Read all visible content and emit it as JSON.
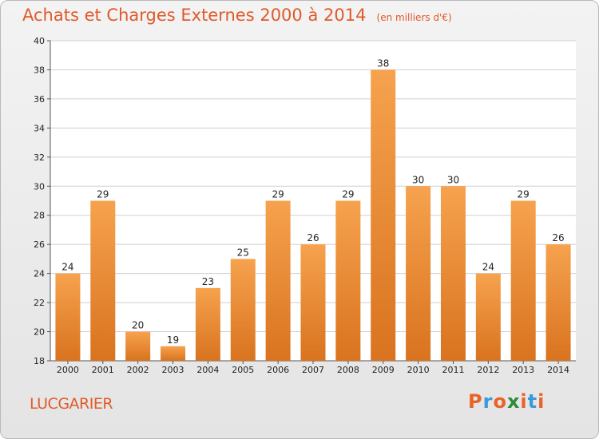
{
  "header": {
    "title": "Achats et Charges Externes 2000 à 2014",
    "subtitle": "(en milliers d'€)"
  },
  "footer": {
    "commune": "LUCGARIER",
    "brand": "Proxiti",
    "brand_colors": [
      "#e8632a",
      "#3a9ad9",
      "#e8632a",
      "#2e8b3a",
      "#e8632a",
      "#3a9ad9",
      "#e8632a"
    ]
  },
  "colors": {
    "bar_top": "#f6a24e",
    "bar_bottom": "#d9731f",
    "title": "#e05a2a",
    "grid": "#cfcfcf"
  },
  "chart_data": {
    "type": "bar",
    "title": "Achats et Charges Externes 2000 à 2014",
    "subtitle": "(en milliers d'€)",
    "categories": [
      "2000",
      "2001",
      "2002",
      "2003",
      "2004",
      "2005",
      "2006",
      "2007",
      "2008",
      "2009",
      "2010",
      "2011",
      "2012",
      "2013",
      "2014"
    ],
    "values": [
      24,
      29,
      20,
      19,
      23,
      25,
      29,
      26,
      29,
      38,
      30,
      30,
      24,
      29,
      26
    ],
    "ylim": [
      18,
      40
    ],
    "yticks": [
      18,
      20,
      22,
      24,
      26,
      28,
      30,
      32,
      34,
      36,
      38,
      40
    ],
    "grid": true,
    "data_labels": true
  }
}
